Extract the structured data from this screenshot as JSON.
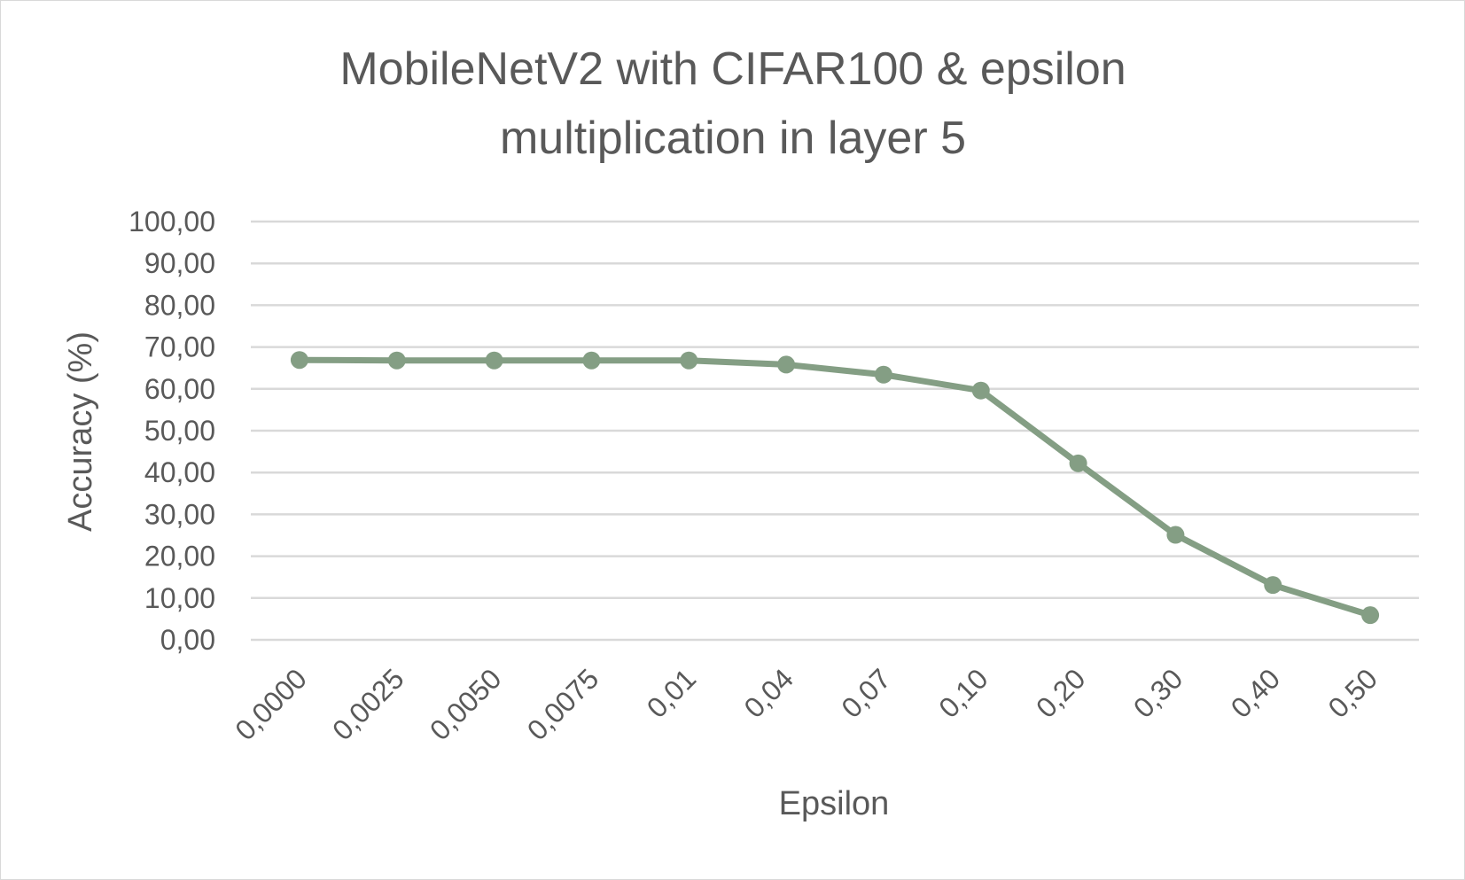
{
  "chart_data": {
    "type": "line",
    "title_lines": [
      "MobileNetV2 with CIFAR100 & epsilon",
      "multiplication in layer 5"
    ],
    "xlabel": "Epsilon",
    "ylabel": "Accuracy (%)",
    "categories": [
      "0,0000",
      "0,0025",
      "0,0050",
      "0,0075",
      "0,01",
      "0,04",
      "0,07",
      "0,10",
      "0,20",
      "0,30",
      "0,40",
      "0,50"
    ],
    "series": [
      {
        "values": [
          66.9,
          66.8,
          66.8,
          66.8,
          66.8,
          65.8,
          63.4,
          59.6,
          42.2,
          25.1,
          13.1,
          5.9
        ],
        "color": "#849e84"
      }
    ],
    "ylim": [
      0,
      100
    ],
    "yticks": [
      0,
      10,
      20,
      30,
      40,
      50,
      60,
      70,
      80,
      90,
      100
    ],
    "ytick_labels": [
      "0,00",
      "10,00",
      "20,00",
      "30,00",
      "40,00",
      "50,00",
      "60,00",
      "70,00",
      "80,00",
      "90,00",
      "100,00"
    ],
    "grid": true,
    "legend": "none",
    "gridline_color": "#d9d9d9",
    "text_color": "#595959"
  }
}
